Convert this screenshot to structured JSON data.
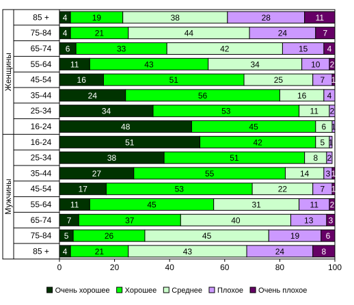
{
  "chart_data": {
    "type": "bar",
    "orientation": "horizontal",
    "stacked": true,
    "xlim": [
      0,
      100
    ],
    "xticks": [
      0,
      20,
      40,
      60,
      80,
      100
    ],
    "grid": false,
    "legend_position": "bottom",
    "groups": [
      {
        "label": "Женщины",
        "categories": [
          "85 +",
          "75-84",
          "65-74",
          "55-64",
          "45-54",
          "35-44",
          "25-34",
          "16-24"
        ]
      },
      {
        "label": "Мужчины",
        "categories": [
          "16-24",
          "25-34",
          "35-44",
          "45-54",
          "55-64",
          "65-74",
          "75-84",
          "85 +"
        ]
      }
    ],
    "series": [
      {
        "name": "Очень хорошее",
        "color": "#003300",
        "label_color": "#ffffff",
        "values": [
          4,
          4,
          6,
          11,
          16,
          24,
          34,
          48,
          51,
          38,
          27,
          17,
          11,
          7,
          5,
          4
        ]
      },
      {
        "name": "Хорошее",
        "color": "#00ff00",
        "label_color": "#000000",
        "values": [
          19,
          21,
          33,
          43,
          51,
          56,
          53,
          45,
          42,
          51,
          55,
          53,
          45,
          37,
          26,
          21
        ]
      },
      {
        "name": "Среднее",
        "color": "#ccffcc",
        "label_color": "#000000",
        "values": [
          38,
          44,
          42,
          34,
          25,
          16,
          11,
          6,
          5,
          8,
          14,
          22,
          31,
          40,
          45,
          43
        ]
      },
      {
        "name": "Плохое",
        "color": "#cc99ff",
        "label_color": "#000000",
        "values": [
          28,
          24,
          15,
          10,
          7,
          4,
          2,
          1,
          1,
          2,
          3,
          7,
          11,
          13,
          19,
          24
        ]
      },
      {
        "name": "Очень плохое",
        "color": "#660066",
        "label_color": "#ffffff",
        "values": [
          11,
          7,
          4,
          2,
          1,
          1,
          0,
          0,
          0,
          0,
          1,
          1,
          2,
          3,
          6,
          8
        ]
      }
    ]
  }
}
